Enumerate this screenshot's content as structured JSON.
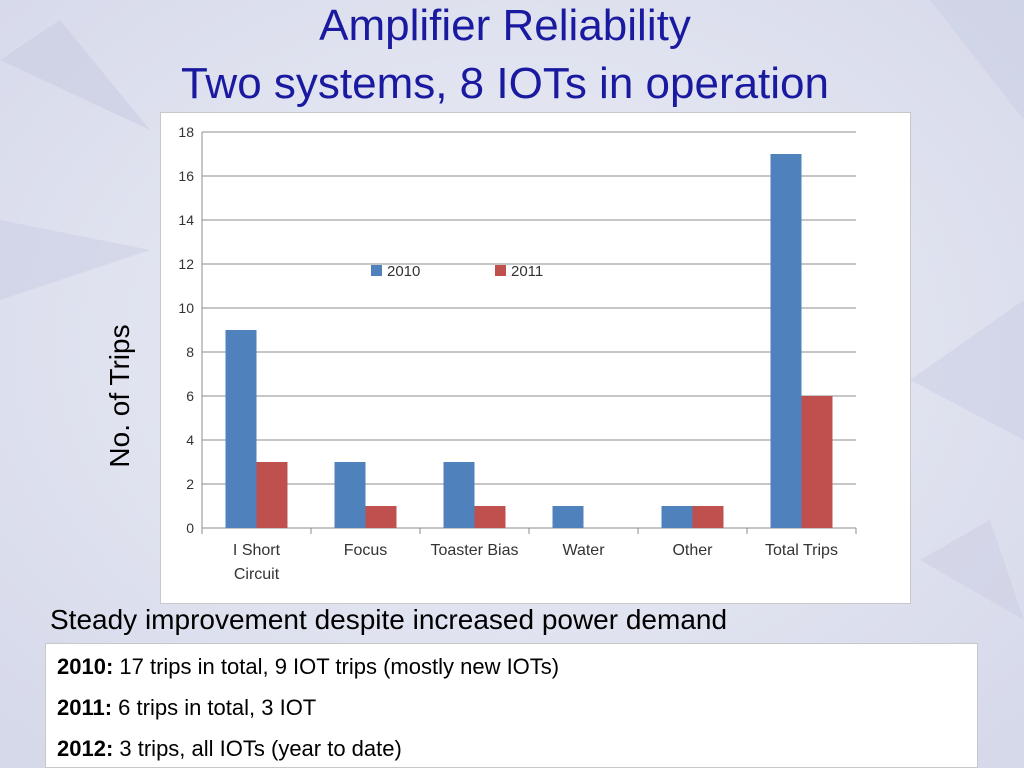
{
  "slide": {
    "title_line1": "Amplifier Reliability",
    "title_line2": "Two systems, 8 IOTs in operation",
    "subtitle": "Steady improvement despite increased power demand",
    "notes": [
      {
        "year": "2010:",
        "text": " 17 trips in total, 9 IOT trips (mostly new IOTs)"
      },
      {
        "year": "2011:",
        "text": " 6 trips in total, 3 IOT"
      },
      {
        "year": "2012:",
        "text": " 3 trips, all IOTs (year to date)"
      }
    ],
    "colors": {
      "title": "#1a1aa0",
      "background": "#dfe2ef"
    }
  },
  "chart_data": {
    "type": "bar",
    "title": "",
    "xlabel": "",
    "ylabel": "No. of Trips",
    "ylim": [
      0,
      18
    ],
    "yticks": [
      "0",
      "2",
      "4",
      "6",
      "8",
      "10",
      "12",
      "14",
      "16",
      "18"
    ],
    "categories": [
      [
        "I Short",
        "Circuit"
      ],
      [
        "Focus"
      ],
      [
        "Toaster Bias"
      ],
      [
        "Water"
      ],
      [
        "Other"
      ],
      [
        "Total Trips"
      ]
    ],
    "series": [
      {
        "name": "2010",
        "color": "#4f81bd",
        "values": [
          9,
          3,
          3,
          1,
          1,
          17
        ]
      },
      {
        "name": "2011",
        "color": "#c0504d",
        "values": [
          3,
          1,
          1,
          0,
          1,
          6
        ]
      }
    ],
    "grid": true,
    "legend_position": "top-center"
  }
}
